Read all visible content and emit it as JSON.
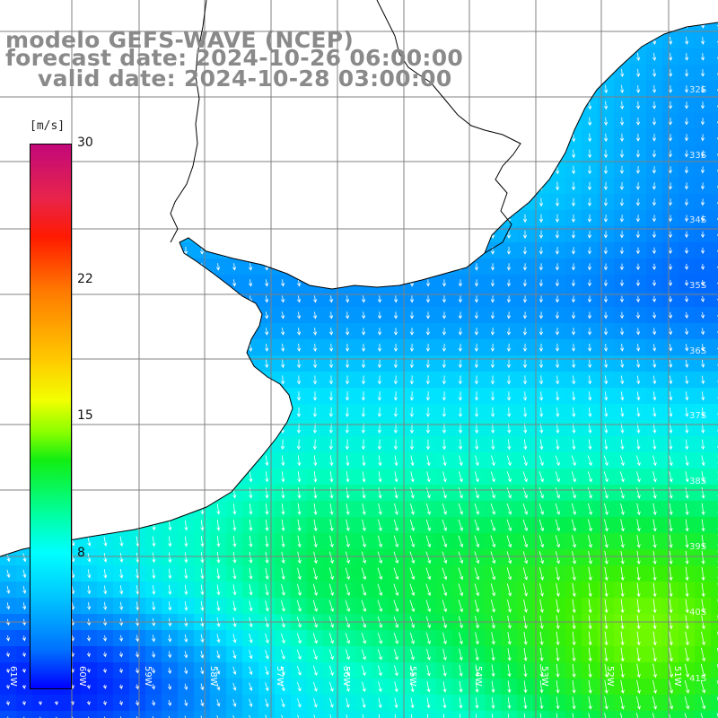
{
  "title": {
    "line1": "modelo GEFS-WAVE (NCEP)",
    "line2": "forecast date: 2024-10-26 06:00:00",
    "line3": "valid date: 2024-10-28 03:00:00"
  },
  "colorbar": {
    "unit": "[m/s]",
    "ticks": [
      "30",
      "22",
      "15",
      "8"
    ]
  },
  "map_labels": {
    "longitudes": [
      "61W",
      "60W",
      "59W",
      "58W",
      "57W",
      "56W",
      "55W",
      "54W",
      "53W",
      "52W",
      "51W"
    ],
    "latitudes": [
      "32S",
      "33S",
      "34S",
      "35S",
      "36S",
      "37S",
      "38S",
      "39S",
      "40S",
      "41S"
    ]
  },
  "colors": {
    "land": "#ffffff",
    "grid": "#808080",
    "coast": "#000000",
    "arrows": "#ffffff",
    "title": "#8a8a8a"
  },
  "map_info": {
    "variable": "wind speed",
    "units": "m/s",
    "range": [
      0,
      30
    ],
    "arrow_direction": "north to south (southward)"
  }
}
